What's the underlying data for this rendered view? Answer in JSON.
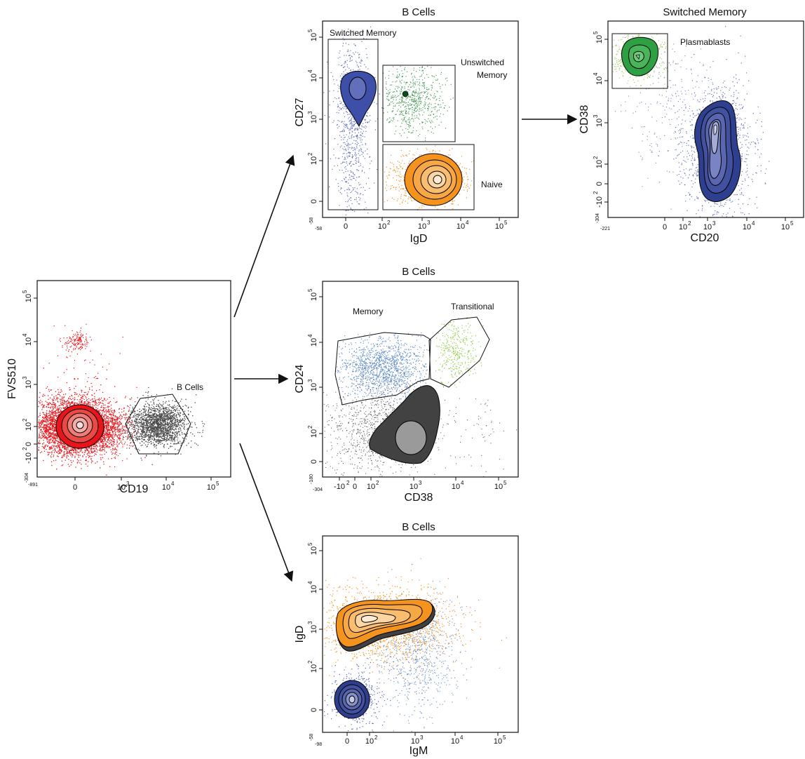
{
  "colors": {
    "red": "#e8141a",
    "gray": "#4a4a4a",
    "blue": "#3d4fa8",
    "green": "#2e8b3e",
    "orange": "#f5931f",
    "lightblue": "#4f7fc0",
    "lightgreen": "#8cc63f",
    "dark": "#3f3f3f"
  },
  "panels": {
    "p1": {
      "xlabel": "CD19",
      "ylabel": "FVS510",
      "xtick_main": [
        "0",
        "10",
        "10",
        "10"
      ],
      "xtick_exp": [
        "",
        "3",
        "4",
        "5"
      ],
      "ytick_main": [
        "-10",
        "0",
        "10",
        "10",
        "10",
        "10"
      ],
      "ytick_exp": [
        "2",
        "",
        "2",
        "3",
        "4",
        "5"
      ],
      "x_min_label": "-891",
      "y_min_label": "-304",
      "gate_label": "B Cells"
    },
    "p2": {
      "title": "B Cells",
      "xlabel": "IgD",
      "ylabel": "CD27",
      "xtick_main": [
        "0",
        "10",
        "10",
        "10",
        "10"
      ],
      "xtick_exp": [
        "",
        "2",
        "3",
        "4",
        "5"
      ],
      "ytick_main": [
        "0",
        "10",
        "10",
        "10",
        "10"
      ],
      "ytick_exp": [
        "",
        "2",
        "3",
        "4",
        "5"
      ],
      "x_min_label": "-58",
      "y_min_label": "-58",
      "gate_switched": "Switched Memory",
      "gate_unswitched_1": "Unswitched",
      "gate_unswitched_2": "Memory",
      "gate_naive": "Naive"
    },
    "p3": {
      "title": "Switched Memory",
      "xlabel": "CD20",
      "ylabel": "CD38",
      "xtick_main": [
        "0",
        "10",
        "10",
        "10",
        "10"
      ],
      "xtick_exp": [
        "",
        "2",
        "3",
        "4",
        "5"
      ],
      "ytick_main": [
        "-10",
        "0",
        "10",
        "10",
        "10",
        "10"
      ],
      "ytick_exp": [
        "2",
        "",
        "2",
        "3",
        "4",
        "5"
      ],
      "x_min_label": "-221",
      "y_min_label": "-304",
      "gate_label": "Plasmablasts"
    },
    "p4": {
      "title": "B Cells",
      "xlabel": "CD38",
      "ylabel": "CD24",
      "xtick_main": [
        "-10",
        "0",
        "10",
        "10",
        "10",
        "10"
      ],
      "xtick_exp": [
        "2",
        "",
        "2",
        "3",
        "4",
        "5"
      ],
      "ytick_main": [
        "0",
        "10",
        "10",
        "10",
        "10"
      ],
      "ytick_exp": [
        "",
        "2",
        "3",
        "4",
        "5"
      ],
      "x_min_label": "-304",
      "y_min_label": "-180",
      "gate_memory": "Memory",
      "gate_transitional": "Transitional"
    },
    "p5": {
      "title": "B Cells",
      "xlabel": "IgM",
      "ylabel": "IgD",
      "xtick_main": [
        "0",
        "10",
        "10",
        "10",
        "10"
      ],
      "xtick_exp": [
        "",
        "2",
        "3",
        "4",
        "5"
      ],
      "ytick_main": [
        "0",
        "10",
        "10",
        "10",
        "10"
      ],
      "ytick_exp": [
        "",
        "2",
        "3",
        "4",
        "5"
      ],
      "x_min_label": "-98",
      "y_min_label": "-58"
    }
  }
}
